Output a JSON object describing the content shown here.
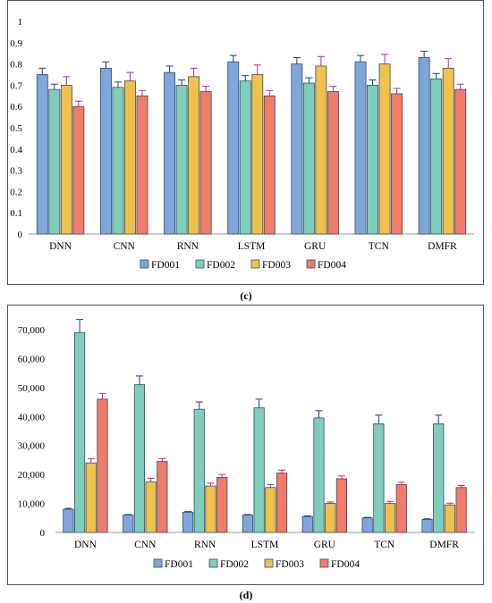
{
  "palette": {
    "FD001": "#7ea6dc",
    "FD002": "#7fcdbb",
    "FD003": "#f0c14b",
    "FD004": "#ef7b68",
    "edge": "#3a4a5e",
    "err_blue": "#1f3a78",
    "err_pink": "#c0209a"
  },
  "panels": [
    {
      "label": "(c)"
    },
    {
      "label": "(d)"
    }
  ],
  "chart_data": [
    {
      "type": "bar",
      "categories": [
        "DNN",
        "CNN",
        "RNN",
        "LSTM",
        "GRU",
        "TCN",
        "DMFR"
      ],
      "series": [
        {
          "name": "FD001",
          "values": [
            0.75,
            0.78,
            0.76,
            0.81,
            0.8,
            0.81,
            0.83
          ],
          "errors": [
            0.03,
            0.03,
            0.03,
            0.03,
            0.03,
            0.03,
            0.03
          ]
        },
        {
          "name": "FD002",
          "values": [
            0.68,
            0.69,
            0.7,
            0.72,
            0.71,
            0.7,
            0.73
          ],
          "errors": [
            0.025,
            0.025,
            0.025,
            0.025,
            0.025,
            0.025,
            0.025
          ]
        },
        {
          "name": "FD003",
          "values": [
            0.7,
            0.72,
            0.74,
            0.75,
            0.79,
            0.8,
            0.78
          ],
          "errors": [
            0.04,
            0.04,
            0.04,
            0.045,
            0.045,
            0.045,
            0.045
          ]
        },
        {
          "name": "FD004",
          "values": [
            0.6,
            0.65,
            0.67,
            0.65,
            0.67,
            0.66,
            0.68
          ],
          "errors": [
            0.025,
            0.025,
            0.025,
            0.025,
            0.025,
            0.025,
            0.025
          ]
        }
      ],
      "ylim": [
        0,
        1
      ],
      "yticks": [
        0,
        0.1,
        0.2,
        0.3,
        0.4,
        0.5,
        0.6,
        0.7,
        0.8,
        0.9,
        1
      ],
      "ytick_labels": [
        "0",
        "0.1",
        "0.2",
        "0.3",
        "0.4",
        "0.5",
        "0.6",
        "0.7",
        "0.8",
        "0.9",
        "1"
      ],
      "grid": false,
      "legend_position": "bottom"
    },
    {
      "type": "bar",
      "categories": [
        "DNN",
        "CNN",
        "RNN",
        "LSTM",
        "GRU",
        "TCN",
        "DMFR"
      ],
      "series": [
        {
          "name": "FD001",
          "values": [
            8000,
            6000,
            7000,
            6000,
            5500,
            5000,
            4500
          ],
          "errors": [
            300,
            200,
            200,
            200,
            200,
            200,
            200
          ]
        },
        {
          "name": "FD002",
          "values": [
            69000,
            51000,
            42500,
            43000,
            39500,
            37500,
            37500
          ],
          "errors": [
            4500,
            3000,
            2500,
            3000,
            2500,
            3000,
            3000
          ]
        },
        {
          "name": "FD003",
          "values": [
            24000,
            17500,
            16000,
            15500,
            10000,
            10000,
            9500
          ],
          "errors": [
            1500,
            1200,
            1000,
            1000,
            500,
            700,
            600
          ]
        },
        {
          "name": "FD004",
          "values": [
            46000,
            24500,
            19000,
            20500,
            18500,
            16500,
            15500
          ],
          "errors": [
            2000,
            1000,
            1000,
            1000,
            1000,
            800,
            700
          ]
        }
      ],
      "ylim": [
        0,
        70000
      ],
      "yticks": [
        0,
        10000,
        20000,
        30000,
        40000,
        50000,
        60000,
        70000
      ],
      "ytick_labels": [
        "0",
        "10,000",
        "20,000",
        "30,000",
        "40,000",
        "50,000",
        "60,000",
        "70,000"
      ],
      "grid": false,
      "legend_position": "bottom"
    }
  ]
}
